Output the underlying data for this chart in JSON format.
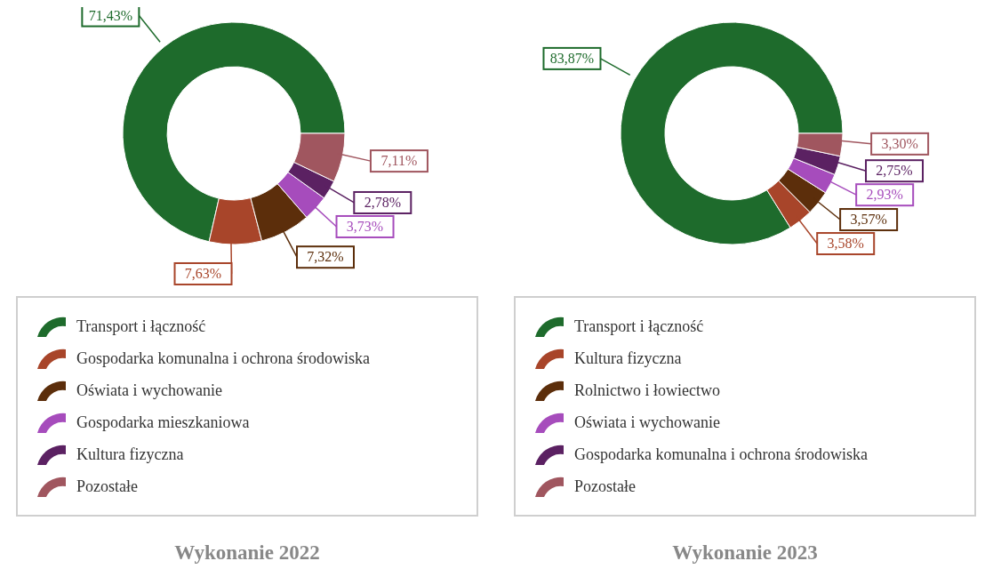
{
  "chart_data": [
    {
      "type": "donut",
      "title": "Wykonanie 2022",
      "categories": [
        "Transport i łączność",
        "Gospodarka komunalna i ochrona środowiska",
        "Oświata i wychowanie",
        "Gospodarka mieszkaniowa",
        "Kultura fizyczna",
        "Pozostałe"
      ],
      "values": [
        71.43,
        7.63,
        7.32,
        3.73,
        2.78,
        7.11
      ],
      "value_labels": [
        "71,43%",
        "7,63%",
        "7,32%",
        "3,73%",
        "2,78%",
        "7,11%"
      ],
      "colors": [
        "#1e6b2c",
        "#a8452a",
        "#5c2e0b",
        "#a64cbc",
        "#5b2162",
        "#a0565f"
      ],
      "legend": "bottom"
    },
    {
      "type": "donut",
      "title": "Wykonanie 2023",
      "categories": [
        "Transport i łączność",
        "Kultura fizyczna",
        "Rolnictwo i łowiectwo",
        "Oświata i wychowanie",
        "Gospodarka komunalna i ochrona środowiska",
        "Pozostałe"
      ],
      "values": [
        83.87,
        3.58,
        3.57,
        2.93,
        2.75,
        3.3
      ],
      "value_labels": [
        "83,87%",
        "3,58%",
        "3,57%",
        "2,93%",
        "2,75%",
        "3,30%"
      ],
      "colors": [
        "#1e6b2c",
        "#a8452a",
        "#5c2e0b",
        "#a64cbc",
        "#5b2162",
        "#a0565f"
      ],
      "legend": "bottom"
    }
  ]
}
